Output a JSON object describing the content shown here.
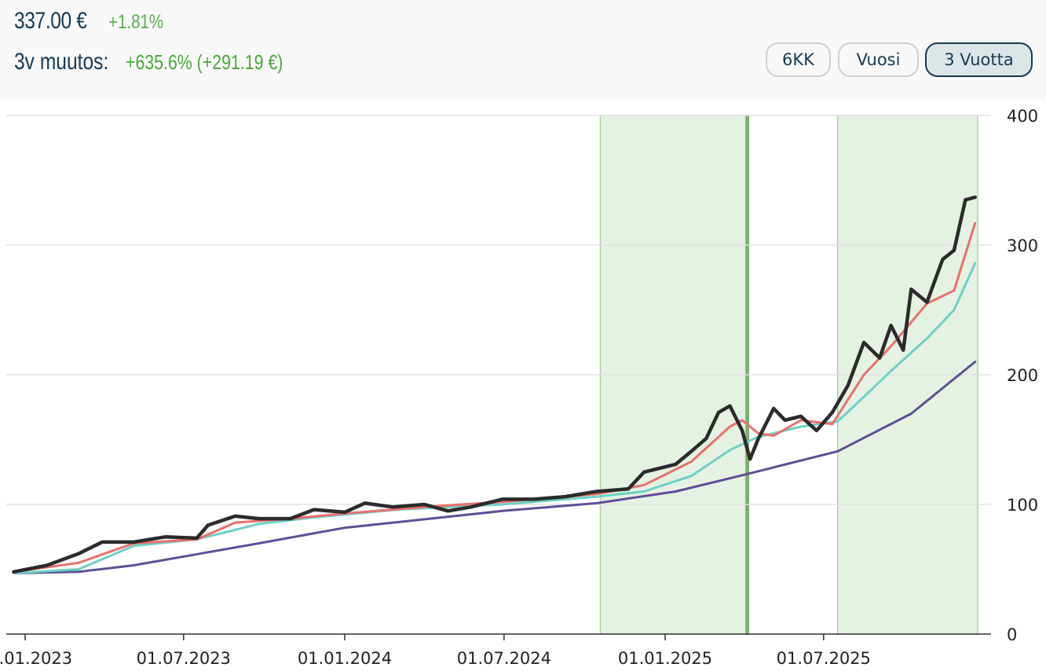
{
  "header": {
    "price": "337.00 €",
    "day_change": "+1.81%",
    "period_label": "3v muutos:",
    "period_change": "+635.6% (+291.19 €)"
  },
  "range_buttons": [
    {
      "label": "6KK",
      "active": false
    },
    {
      "label": "Vuosi",
      "active": false
    },
    {
      "label": "3 Vuotta",
      "active": true
    }
  ],
  "colors": {
    "price": "#2b2b2b",
    "ma_short": "#e8706c",
    "ma_medium": "#6fcfc4",
    "ma_long": "#5f4f94",
    "highlight_fill": "#e5f2e3",
    "highlight_stroke": "#a8d3a0",
    "positive": "#5aae4e"
  },
  "chart_data": {
    "type": "line",
    "title": "",
    "xlabel": "",
    "ylabel": "",
    "xlim": [
      "2022-12-19",
      "2025-12-24"
    ],
    "ylim": [
      0,
      400
    ],
    "y_ticks": [
      "0",
      "100",
      "200",
      "300",
      "400"
    ],
    "x_ticks": [
      {
        "date": "2023-01-01",
        "label": "01.01.2023"
      },
      {
        "date": "2023-07-01",
        "label": "01.07.2023"
      },
      {
        "date": "2024-01-01",
        "label": "01.01.2024"
      },
      {
        "date": "2024-07-01",
        "label": "01.07.2024"
      },
      {
        "date": "2025-01-01",
        "label": "01.01.2025"
      },
      {
        "date": "2025-07-01",
        "label": "01.07.2025"
      }
    ],
    "grid": "horizontal",
    "y_axis_position": "right",
    "highlight_ranges": [
      {
        "start": "2024-10-19",
        "end": "2025-04-03"
      },
      {
        "start": "2025-04-04",
        "end": "2025-04-06"
      },
      {
        "start": "2025-07-17",
        "end": "2025-12-24"
      }
    ],
    "series": [
      {
        "name": "price",
        "color_key": "price",
        "points": [
          [
            "2022-12-19",
            48
          ],
          [
            "2023-01-26",
            53
          ],
          [
            "2023-03-03",
            62
          ],
          [
            "2023-03-30",
            71
          ],
          [
            "2023-05-05",
            71
          ],
          [
            "2023-06-10",
            75
          ],
          [
            "2023-07-16",
            74
          ],
          [
            "2023-07-29",
            84
          ],
          [
            "2023-08-29",
            91
          ],
          [
            "2023-09-25",
            89
          ],
          [
            "2023-10-31",
            89
          ],
          [
            "2023-11-27",
            96
          ],
          [
            "2024-01-01",
            94
          ],
          [
            "2024-01-24",
            101
          ],
          [
            "2024-02-25",
            98
          ],
          [
            "2024-04-01",
            100
          ],
          [
            "2024-04-28",
            95
          ],
          [
            "2024-05-24",
            98
          ],
          [
            "2024-06-29",
            104
          ],
          [
            "2024-08-04",
            104
          ],
          [
            "2024-09-09",
            106
          ],
          [
            "2024-10-15",
            110
          ],
          [
            "2024-11-20",
            112
          ],
          [
            "2024-12-08",
            125
          ],
          [
            "2025-01-13",
            131
          ],
          [
            "2025-01-31",
            141
          ],
          [
            "2025-02-17",
            151
          ],
          [
            "2025-03-03",
            171
          ],
          [
            "2025-03-16",
            176
          ],
          [
            "2025-03-30",
            157
          ],
          [
            "2025-04-08",
            135
          ],
          [
            "2025-04-17",
            150
          ],
          [
            "2025-05-05",
            174
          ],
          [
            "2025-05-18",
            165
          ],
          [
            "2025-06-05",
            168
          ],
          [
            "2025-06-23",
            157
          ],
          [
            "2025-07-11",
            171
          ],
          [
            "2025-07-29",
            192
          ],
          [
            "2025-08-16",
            225
          ],
          [
            "2025-09-03",
            213
          ],
          [
            "2025-09-16",
            238
          ],
          [
            "2025-09-30",
            219
          ],
          [
            "2025-10-09",
            266
          ],
          [
            "2025-10-27",
            256
          ],
          [
            "2025-11-14",
            289
          ],
          [
            "2025-11-27",
            296
          ],
          [
            "2025-12-10",
            335
          ],
          [
            "2025-12-21",
            337
          ]
        ]
      },
      {
        "name": "ma_short",
        "color_key": "ma_short",
        "points": [
          [
            "2022-12-19",
            48
          ],
          [
            "2023-03-03",
            55
          ],
          [
            "2023-05-05",
            70
          ],
          [
            "2023-07-16",
            73
          ],
          [
            "2023-08-29",
            86
          ],
          [
            "2023-10-31",
            89
          ],
          [
            "2024-01-01",
            93
          ],
          [
            "2024-04-01",
            98
          ],
          [
            "2024-06-29",
            102
          ],
          [
            "2024-10-15",
            108
          ],
          [
            "2024-12-08",
            115
          ],
          [
            "2025-01-31",
            133
          ],
          [
            "2025-03-16",
            160
          ],
          [
            "2025-03-30",
            165
          ],
          [
            "2025-04-17",
            155
          ],
          [
            "2025-05-05",
            153
          ],
          [
            "2025-06-05",
            165
          ],
          [
            "2025-07-11",
            162
          ],
          [
            "2025-08-16",
            200
          ],
          [
            "2025-09-16",
            222
          ],
          [
            "2025-10-27",
            255
          ],
          [
            "2025-11-27",
            265
          ],
          [
            "2025-12-21",
            317
          ]
        ]
      },
      {
        "name": "ma_medium",
        "color_key": "ma_medium",
        "points": [
          [
            "2022-12-19",
            47
          ],
          [
            "2023-03-03",
            50
          ],
          [
            "2023-05-05",
            68
          ],
          [
            "2023-07-16",
            73
          ],
          [
            "2023-09-25",
            85
          ],
          [
            "2023-11-27",
            90
          ],
          [
            "2024-03-01",
            96
          ],
          [
            "2024-06-29",
            100
          ],
          [
            "2024-10-15",
            106
          ],
          [
            "2024-12-08",
            110
          ],
          [
            "2025-01-31",
            122
          ],
          [
            "2025-03-16",
            142
          ],
          [
            "2025-04-17",
            152
          ],
          [
            "2025-06-05",
            160
          ],
          [
            "2025-07-17",
            164
          ],
          [
            "2025-08-16",
            183
          ],
          [
            "2025-09-16",
            203
          ],
          [
            "2025-10-27",
            228
          ],
          [
            "2025-11-27",
            250
          ],
          [
            "2025-12-21",
            286
          ]
        ]
      },
      {
        "name": "ma_long",
        "color_key": "ma_long",
        "points": [
          [
            "2022-12-19",
            47
          ],
          [
            "2023-03-03",
            48
          ],
          [
            "2023-05-05",
            53
          ],
          [
            "2023-09-25",
            70
          ],
          [
            "2024-01-01",
            82
          ],
          [
            "2024-06-29",
            95
          ],
          [
            "2024-10-15",
            101
          ],
          [
            "2025-01-13",
            110
          ],
          [
            "2025-04-08",
            124
          ],
          [
            "2025-07-17",
            141
          ],
          [
            "2025-10-09",
            170
          ],
          [
            "2025-12-21",
            210
          ]
        ]
      }
    ]
  }
}
